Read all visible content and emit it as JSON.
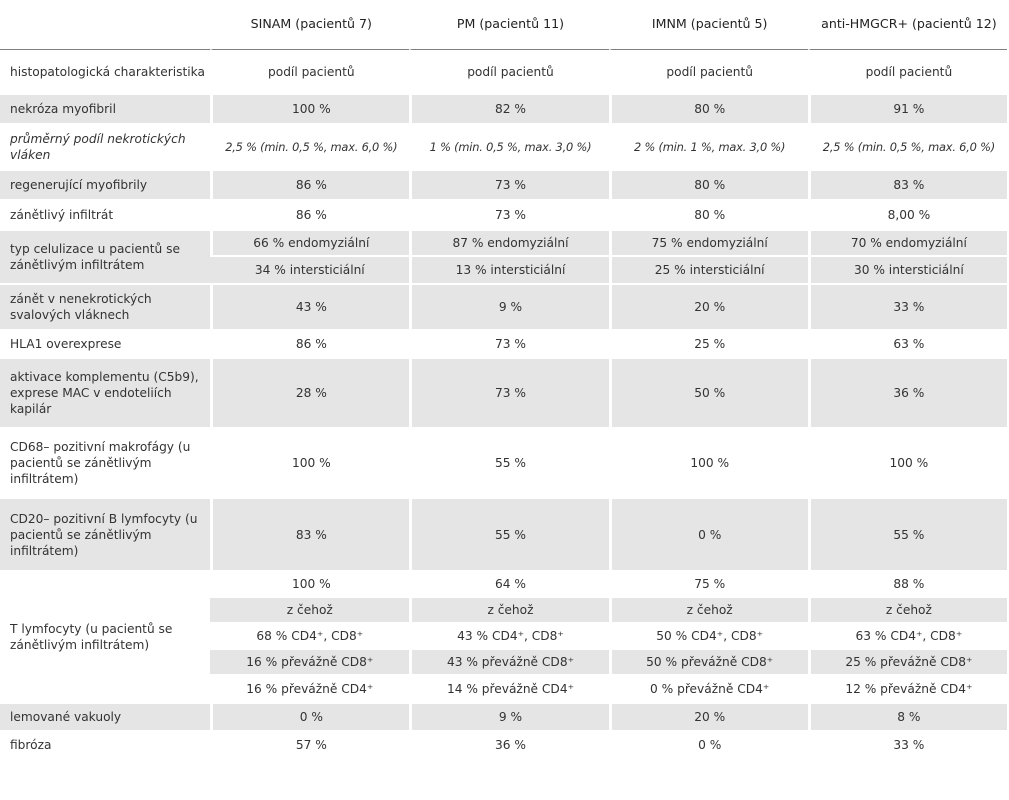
{
  "headers": [
    "",
    "SINAM (pacientů 7)",
    "PM (pacientů 11)",
    "IMNM (pacientů 5)",
    "anti-HMGCR+ (pacientů 12)"
  ],
  "rows": {
    "histo": {
      "label": "histopatologická charakteristika",
      "vals": [
        "podíl pacientů",
        "podíl pacientů",
        "podíl pacientů",
        "podíl pacientů"
      ]
    },
    "nekroza": {
      "label": "nekróza myofibril",
      "vals": [
        "100 %",
        "82 %",
        "80 %",
        "91 %"
      ]
    },
    "prumerny": {
      "label": "průměrný podíl nekrotických vláken",
      "vals": [
        "2,5 % (min. 0,5 %, max. 6,0 %)",
        "1 % (min. 0,5 %, max. 3,0 %)",
        "2 % (min. 1 %, max. 3,0 %)",
        "2,5 % (min. 0,5 %, max. 6,0 %)"
      ]
    },
    "regen": {
      "label": "regenerující myofibrily",
      "vals": [
        "86 %",
        "73 %",
        "80 %",
        "83 %"
      ]
    },
    "zanetlivy": {
      "label": "zánětlivý infiltrát",
      "vals": [
        "86 %",
        "73 %",
        "80 %",
        "8,00 %"
      ]
    },
    "typ": {
      "label": "typ celulizace u pacientů se zánětlivým infiltrátem",
      "endo": [
        "66 % endomyziální",
        "87 % endomyziální",
        "75 % endomyziální",
        "70 % endomyziální"
      ],
      "inter": [
        "34 % intersticiální",
        "13 % intersticiální",
        "25 % intersticiální",
        "30 % intersticiální"
      ]
    },
    "zanet": {
      "label": "zánět v nenekrotických svalových vláknech",
      "vals": [
        "43 %",
        "9 %",
        "20 %",
        "33 %"
      ]
    },
    "hla": {
      "label": "HLA1 overexprese",
      "vals": [
        "86 %",
        "73 %",
        "25 %",
        "63 %"
      ]
    },
    "aktivace": {
      "label": "aktivace komplementu (C5b9), exprese MAC v endoteliích kapilár",
      "vals": [
        "28 %",
        "73 %",
        "50 %",
        "36 %"
      ]
    },
    "cd68": {
      "label": "CD68– pozitivní makrofágy (u pacientů se zánětlivým infiltrátem)",
      "vals": [
        "100 %",
        "55 %",
        "100 %",
        "100 %"
      ]
    },
    "cd20": {
      "label": "CD20– pozitivní B lymfocyty (u pacientů se zánětlivým infiltrátem)",
      "vals": [
        "83 %",
        "55 %",
        "0 %",
        "55 %"
      ]
    },
    "t": {
      "label": "T lymfocyty (u pacientů se zánětlivým infiltrátem)",
      "total": [
        "100 %",
        "64 %",
        "75 %",
        "88 %"
      ],
      "zcehoz": [
        "z čehož",
        "z čehož",
        "z čehož",
        "z čehož"
      ],
      "both": [
        "68 % CD4⁺, CD8⁺",
        "43 % CD4⁺, CD8⁺",
        "50 % CD4⁺, CD8⁺",
        "63 % CD4⁺, CD8⁺"
      ],
      "cd8": [
        "16 % převážně CD8⁺",
        "43 % převážně CD8⁺",
        "50 % převážně CD8⁺",
        "25 % převážně CD8⁺"
      ],
      "cd4": [
        "16 % převážně CD4⁺",
        "14 % převážně CD4⁺",
        "0 % převážně CD4⁺",
        "12 % převážně CD4⁺"
      ]
    },
    "vakuoly": {
      "label": "lemované vakuoly",
      "vals": [
        "0 %",
        "9 %",
        "20 %",
        "8 %"
      ]
    },
    "fibroza": {
      "label": "fibróza",
      "vals": [
        "57 %",
        "36 %",
        "0 %",
        "33 %"
      ]
    }
  }
}
